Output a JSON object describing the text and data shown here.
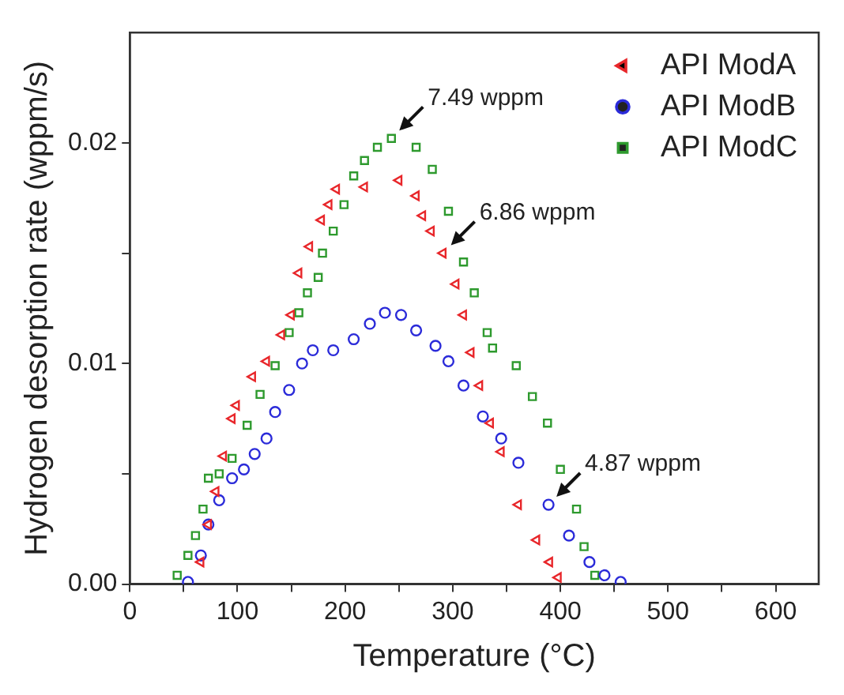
{
  "chart_data": {
    "type": "scatter",
    "xlabel": "Temperature (°C)",
    "ylabel": "Hydrogen desorption rate (wppm/s)",
    "xlim": [
      0,
      640
    ],
    "ylim": [
      0,
      0.025
    ],
    "xticks": [
      0,
      {
        "value": 50,
        "label": null
      },
      100,
      {
        "value": 150,
        "label": null
      },
      200,
      {
        "value": 250,
        "label": null
      },
      300,
      {
        "value": 350,
        "label": null
      },
      400,
      {
        "value": 450,
        "label": null
      },
      500,
      {
        "value": 550,
        "label": null
      },
      600
    ],
    "yticks": [
      {
        "value": 0,
        "label": "0.00"
      },
      {
        "value": 0.005,
        "label": null
      },
      {
        "value": 0.01,
        "label": "0.01"
      },
      {
        "value": 0.015,
        "label": null
      },
      {
        "value": 0.02,
        "label": "0.02"
      }
    ],
    "grid": false,
    "legend": "top right",
    "series": [
      {
        "name": "API ModA",
        "color": "#e8262a",
        "marker": "triangle",
        "x": [
          66,
          73,
          80,
          87,
          95,
          99,
          114,
          127,
          141,
          150,
          157,
          167,
          178,
          185,
          192,
          218,
          250,
          266,
          272,
          280,
          291,
          303,
          310,
          317,
          325,
          335,
          345,
          361,
          378,
          390,
          398
        ],
        "values": [
          0.001,
          0.0027,
          0.0042,
          0.0058,
          0.0075,
          0.0081,
          0.0094,
          0.0101,
          0.0113,
          0.0122,
          0.0141,
          0.0153,
          0.0165,
          0.0172,
          0.0179,
          0.018,
          0.0183,
          0.0176,
          0.0167,
          0.016,
          0.015,
          0.0136,
          0.0122,
          0.0105,
          0.009,
          0.0073,
          0.006,
          0.0036,
          0.002,
          0.001,
          0.0003
        ]
      },
      {
        "name": "API ModB",
        "color": "#2b2bd9",
        "marker": "circle",
        "x": [
          54,
          66,
          73,
          83,
          95,
          106,
          116,
          127,
          135,
          148,
          160,
          170,
          189,
          208,
          223,
          237,
          252,
          266,
          284,
          296,
          310,
          328,
          345,
          361,
          389,
          408,
          427,
          441,
          456
        ],
        "values": [
          0.0001,
          0.0013,
          0.0027,
          0.0038,
          0.0048,
          0.0052,
          0.0059,
          0.0066,
          0.0078,
          0.0088,
          0.01,
          0.0106,
          0.0106,
          0.0111,
          0.0118,
          0.0123,
          0.0122,
          0.0115,
          0.0108,
          0.0101,
          0.009,
          0.0076,
          0.0066,
          0.0055,
          0.0036,
          0.0022,
          0.001,
          0.0004,
          0.0001
        ]
      },
      {
        "name": "API ModC",
        "color": "#2e9a2e",
        "marker": "square",
        "x": [
          44,
          54,
          61,
          68,
          73,
          83,
          95,
          109,
          121,
          135,
          148,
          157,
          165,
          175,
          179,
          189,
          199,
          208,
          218,
          230,
          243,
          266,
          281,
          296,
          310,
          320,
          332,
          337,
          359,
          374,
          388,
          400,
          415,
          422,
          432
        ],
        "values": [
          0.0004,
          0.0013,
          0.0022,
          0.0034,
          0.0048,
          0.005,
          0.0057,
          0.0072,
          0.0086,
          0.0099,
          0.0114,
          0.0123,
          0.0132,
          0.0139,
          0.015,
          0.016,
          0.0172,
          0.0185,
          0.0192,
          0.0198,
          0.0202,
          0.0198,
          0.0188,
          0.0169,
          0.0146,
          0.0132,
          0.0114,
          0.0107,
          0.0099,
          0.0085,
          0.0073,
          0.0052,
          0.0034,
          0.0017,
          0.0004
        ]
      }
    ],
    "annotations": [
      {
        "text": "7.49 wppm",
        "x": 243,
        "y": 0.0202
      },
      {
        "text": "6.86 wppm",
        "x": 291,
        "y": 0.015
      },
      {
        "text": "4.87 wppm",
        "x": 389,
        "y": 0.0036
      }
    ]
  }
}
